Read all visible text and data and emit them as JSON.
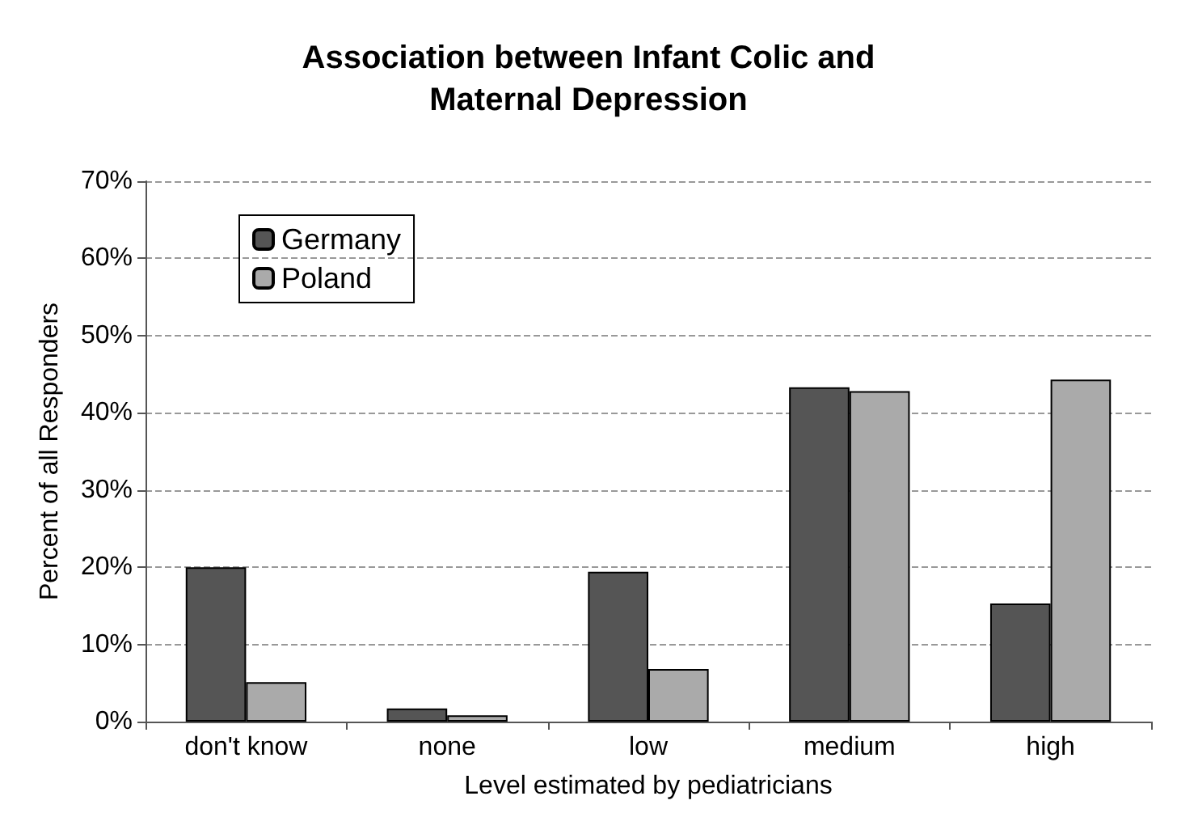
{
  "chart_data": {
    "type": "bar",
    "title": "Association between Infant Colic and\nMaternal Depression",
    "xlabel": "Level estimated by pediatricians",
    "ylabel": "Percent of all Responders",
    "categories": [
      "don't know",
      "none",
      "low",
      "medium",
      "high"
    ],
    "series": [
      {
        "name": "Germany",
        "color": "#555555",
        "values": [
          20,
          1.7,
          19.4,
          43.3,
          15.3
        ]
      },
      {
        "name": "Poland",
        "color": "#aaaaaa",
        "values": [
          5.1,
          0.8,
          6.8,
          42.8,
          44.3
        ]
      }
    ],
    "ylim": [
      0,
      70
    ],
    "yticks": [
      {
        "value": 0,
        "label": "0%"
      },
      {
        "value": 10,
        "label": "10%"
      },
      {
        "value": 20,
        "label": "20%"
      },
      {
        "value": 30,
        "label": "30%"
      },
      {
        "value": 40,
        "label": "40%"
      },
      {
        "value": 50,
        "label": "50%"
      },
      {
        "value": 60,
        "label": "60%"
      },
      {
        "value": 70,
        "label": "70%"
      }
    ],
    "grid": "y",
    "legend": "top left"
  }
}
